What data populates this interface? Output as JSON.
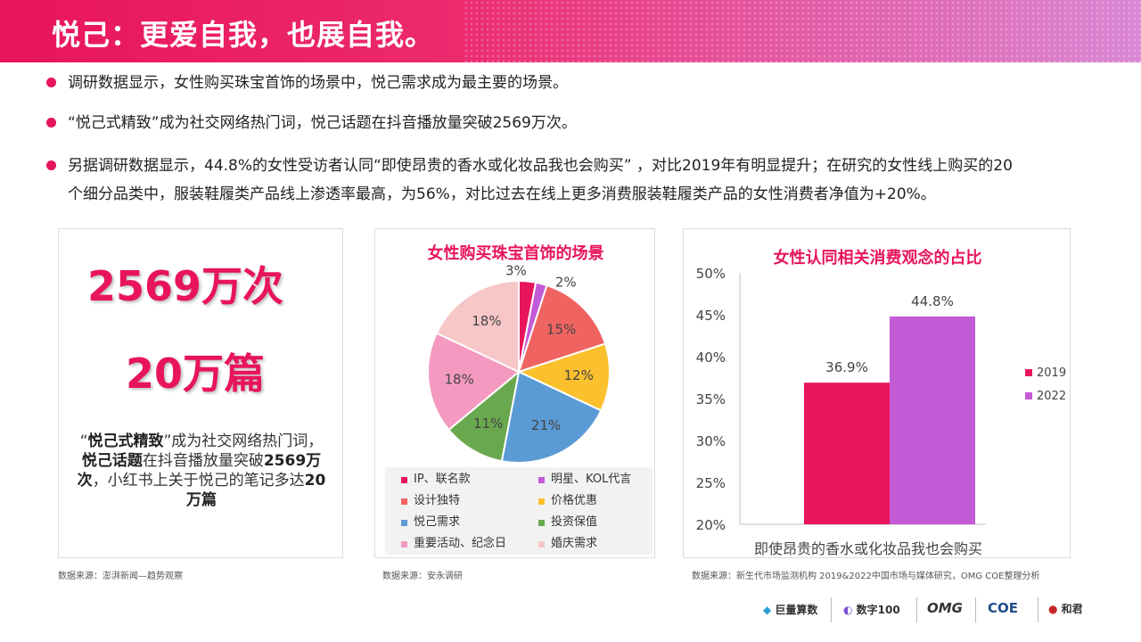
{
  "header": {
    "title": "悦己：更爱自我，也展自我。"
  },
  "bullets": [
    {
      "text": "调研数据显示，女性购买珠宝首饰的场景中，悦己需求成为最主要的场景。"
    },
    {
      "text": "“悦己式精致”成为社交网络热门词，悦己话题在抖音播放量突破2569万次。"
    },
    {
      "line1": "另据调研数据显示，44.8%的女性受访者认同“即使昂贵的香水或化妆品我也会购买” ，对比2019年有明显提升；在研究的女性线上购买的20",
      "line2": "个细分品类中，服装鞋履类产品线上渗透率最高，为56%，对比过去在线上更多消费服装鞋履类产品的女性消费者净值为+20%。"
    }
  ],
  "left_panel": {
    "stat1": "2569万次",
    "stat2": "20万篇",
    "note": [
      {
        "t": "“",
        "b": false
      },
      {
        "t": "悦己式精致",
        "b": true
      },
      {
        "t": "”成为社交网络热门词，",
        "b": false
      },
      {
        "t": "悦己话题",
        "b": true
      },
      {
        "t": "在抖音播放量突破",
        "b": false
      },
      {
        "t": "2569万次",
        "b": true
      },
      {
        "t": "，小红书上关于悦己的笔记多达",
        "b": false
      },
      {
        "t": "20万篇",
        "b": true
      }
    ],
    "source": "数据来源：澎湃新闻—趋势观察"
  },
  "pie_source": "数据来源：安永调研",
  "bar_source": "数据来源：新生代市场监测机构 2019&2022中国市场与媒体研究，OMG COE整理分析",
  "chart_data": [
    {
      "type": "pie",
      "title": "女性购买珠宝首饰的场景",
      "slices": [
        {
          "name": "IP、联名款",
          "value": 3,
          "label": "3%",
          "color": "#e8145d"
        },
        {
          "name": "明星、KOL代言",
          "value": 2,
          "label": "2%",
          "color": "#c35bd6"
        },
        {
          "name": "设计独特",
          "value": 15,
          "label": "15%",
          "color": "#ef6461"
        },
        {
          "name": "价格优惠",
          "value": 12,
          "label": "12%",
          "color": "#fbc02d"
        },
        {
          "name": "悦己需求",
          "value": 21,
          "label": "21%",
          "color": "#5b9bd5"
        },
        {
          "name": "投资保值",
          "value": 11,
          "label": "11%",
          "color": "#6aa84f"
        },
        {
          "name": "重要活动、纪念日",
          "value": 18,
          "label": "18%",
          "color": "#f49ac1"
        },
        {
          "name": "婚庆需求",
          "value": 18,
          "label": "18%",
          "color": "#f7c6c7"
        }
      ]
    },
    {
      "type": "bar",
      "title": "女性认同相关消费观念的占比",
      "categories": [
        "即使昂贵的香水或化妆品我也会购买"
      ],
      "series": [
        {
          "name": "2019",
          "values": [
            36.9
          ],
          "label": "36.9%",
          "color": "#e8145d"
        },
        {
          "name": "2022",
          "values": [
            44.8
          ],
          "label": "44.8%",
          "color": "#c35bd6"
        }
      ],
      "ylim": [
        20,
        50
      ],
      "yticks": [
        "20%",
        "25%",
        "30%",
        "35%",
        "40%",
        "45%",
        "50%"
      ],
      "legend": "right"
    }
  ],
  "logos": [
    "巨量算数",
    "数字100",
    "OMG",
    "COE",
    "和君"
  ]
}
